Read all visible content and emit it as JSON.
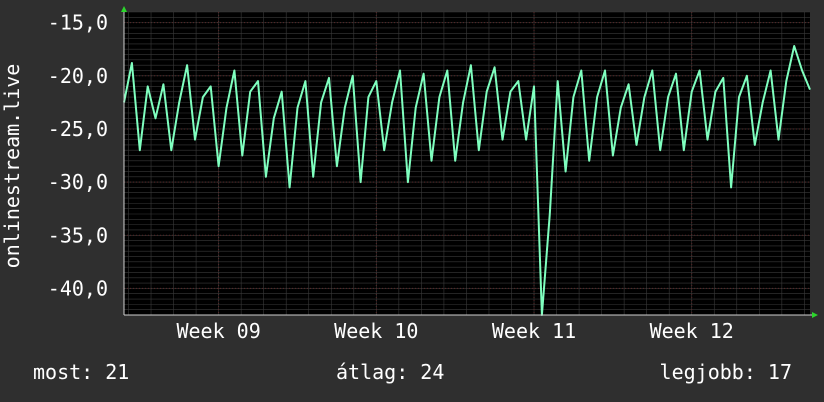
{
  "chart_data": {
    "type": "line",
    "ylabel": "onlinestream.live",
    "ylim": [
      -42.5,
      -14
    ],
    "y_ticks": [
      "-15,0",
      "-20,0",
      "-25,0",
      "-30,0",
      "-35,0",
      "-40,0"
    ],
    "y_tick_values": [
      -15,
      -20,
      -25,
      -30,
      -35,
      -40
    ],
    "x_ticks": [
      "Week 09",
      "Week 10",
      "Week 11",
      "Week 12"
    ],
    "x_range_weeks": [
      8.4,
      12.75
    ],
    "x_tick_values": [
      9,
      10,
      11,
      12
    ],
    "series": [
      {
        "color": "#7fffbf",
        "x": [
          8.4,
          8.45,
          8.5,
          8.55,
          8.6,
          8.65,
          8.7,
          8.75,
          8.8,
          8.85,
          8.9,
          8.95,
          9.0,
          9.05,
          9.1,
          9.15,
          9.2,
          9.25,
          9.3,
          9.35,
          9.4,
          9.45,
          9.5,
          9.55,
          9.6,
          9.65,
          9.7,
          9.75,
          9.8,
          9.85,
          9.9,
          9.95,
          10.0,
          10.05,
          10.1,
          10.15,
          10.2,
          10.25,
          10.3,
          10.35,
          10.4,
          10.45,
          10.5,
          10.55,
          10.6,
          10.65,
          10.7,
          10.75,
          10.8,
          10.85,
          10.9,
          10.95,
          11.0,
          11.05,
          11.1,
          11.15,
          11.2,
          11.25,
          11.3,
          11.35,
          11.4,
          11.45,
          11.5,
          11.55,
          11.6,
          11.65,
          11.7,
          11.75,
          11.8,
          11.85,
          11.9,
          11.95,
          12.0,
          12.05,
          12.1,
          12.15,
          12.2,
          12.25,
          12.3,
          12.35,
          12.4,
          12.45,
          12.5,
          12.55,
          12.6,
          12.65,
          12.7,
          12.75
        ],
        "values": [
          -22.5,
          -18.8,
          -27,
          -21,
          -24,
          -20.8,
          -27,
          -22.5,
          -19,
          -26,
          -22,
          -21,
          -28.5,
          -23,
          -19.5,
          -27.5,
          -21.5,
          -20.5,
          -29.5,
          -24,
          -21.5,
          -30.5,
          -23,
          -20.5,
          -29.5,
          -22.5,
          -20.2,
          -28.5,
          -23,
          -20,
          -30,
          -22,
          -20.5,
          -27,
          -22.5,
          -19.5,
          -30,
          -23,
          -19.8,
          -28,
          -22,
          -19.5,
          -28,
          -22.5,
          -19,
          -27,
          -21.5,
          -19.2,
          -26,
          -21.5,
          -20.5,
          -26,
          -21,
          -42.5,
          -33,
          -20.5,
          -29,
          -22,
          -19.5,
          -28,
          -22,
          -19.5,
          -27.5,
          -23,
          -20.8,
          -26.5,
          -22,
          -19.5,
          -27,
          -22,
          -19.8,
          -27,
          -21.5,
          -19.5,
          -26,
          -21.5,
          -20.2,
          -30.5,
          -22,
          -20,
          -26.5,
          -22.5,
          -19.5,
          -26,
          -20.5,
          -17.2,
          -19.5,
          -21.3
        ]
      }
    ],
    "stats": {
      "current": "most: 21",
      "average": "átlag: 24",
      "best": "legjobb: 17"
    },
    "colors": {
      "background": "#2f2f2f",
      "plot_background": "#000000",
      "line": "#7fffbf",
      "grid": "#5a2a2a",
      "text": "#ffffff",
      "axis": "#d0d0d0",
      "arrow": "#2bd62b"
    }
  }
}
